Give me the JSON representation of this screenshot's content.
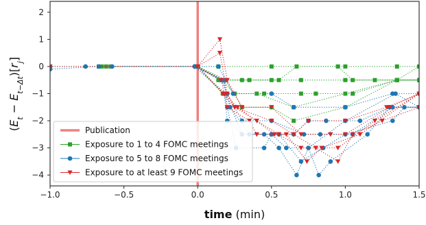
{
  "chart_data": {
    "type": "scatter",
    "title": "",
    "xlabel_bold": "time",
    "xlabel_rest": " (min)",
    "ylabel": "(E_t − E_{t−Δt})[r_j]",
    "xlim": [
      -1.0,
      1.5
    ],
    "ylim": [
      -4.4,
      2.4
    ],
    "xticks": [
      -1.0,
      -0.5,
      0.0,
      0.5,
      1.0,
      1.5
    ],
    "xtick_labels": [
      "−1.0",
      "−0.5",
      "0.0",
      "0.5",
      "1.0",
      "1.5"
    ],
    "yticks": [
      2,
      1,
      0,
      -1,
      -2,
      -3,
      -4
    ],
    "ytick_labels": [
      "2",
      "1",
      "0",
      "−1",
      "−2",
      "−3",
      "−4"
    ],
    "grid": false,
    "legend_position": "lower-left",
    "publication": {
      "name": "Publication",
      "x": 0.0,
      "color": "#f08080"
    },
    "series": [
      {
        "name": "Exposure to 1 to 4 FOMC meetings",
        "color": "#2ca02c",
        "marker": "square",
        "tracks": [
          [
            [
              -1.0,
              0
            ],
            [
              -0.65,
              0
            ],
            [
              0.0,
              0
            ],
            [
              0.14,
              0
            ],
            [
              0.5,
              0
            ],
            [
              1.0,
              0
            ],
            [
              1.35,
              0
            ],
            [
              1.5,
              0
            ]
          ],
          [
            [
              -0.62,
              0
            ],
            [
              0.0,
              0
            ],
            [
              0.14,
              -0.5
            ],
            [
              0.3,
              -0.5
            ],
            [
              0.5,
              -0.5
            ],
            [
              0.7,
              -0.5
            ],
            [
              1.0,
              -0.5
            ],
            [
              1.2,
              -0.5
            ],
            [
              1.35,
              -0.5
            ],
            [
              1.5,
              -0.5
            ]
          ],
          [
            [
              -0.67,
              0
            ],
            [
              0.0,
              0
            ],
            [
              0.16,
              -0.5
            ],
            [
              0.25,
              -1.0
            ],
            [
              0.45,
              -1.0
            ],
            [
              0.7,
              -1.0
            ],
            [
              0.8,
              -1.0
            ],
            [
              1.05,
              -1.0
            ],
            [
              1.35,
              -0.5
            ],
            [
              1.5,
              -0.5
            ]
          ],
          [
            [
              -0.59,
              0
            ],
            [
              0.0,
              0
            ],
            [
              0.17,
              -1.0
            ],
            [
              0.25,
              -1.0
            ],
            [
              0.4,
              -1.0
            ],
            [
              0.65,
              -1.5
            ],
            [
              1.0,
              -1.0
            ],
            [
              1.35,
              -0.5
            ],
            [
              1.5,
              -0.5
            ]
          ],
          [
            [
              0.0,
              0
            ],
            [
              0.19,
              -0.5
            ],
            [
              0.3,
              -1.5
            ],
            [
              0.5,
              -1.5
            ],
            [
              0.65,
              -2.0
            ],
            [
              1.0,
              -1.5
            ],
            [
              1.35,
              -0.5
            ],
            [
              1.5,
              0
            ]
          ],
          [
            [
              0.0,
              0
            ],
            [
              0.19,
              -0.5
            ],
            [
              0.35,
              -0.5
            ],
            [
              0.55,
              -0.5
            ],
            [
              0.67,
              0
            ],
            [
              0.95,
              0
            ],
            [
              1.05,
              -0.5
            ],
            [
              1.5,
              -0.5
            ]
          ]
        ]
      },
      {
        "name": "Exposure to 5 to 8 FOMC meetings",
        "color": "#1f77b4",
        "marker": "circle",
        "tracks": [
          [
            [
              -1.0,
              0
            ],
            [
              -0.76,
              0
            ],
            [
              -0.02,
              0
            ],
            [
              0.14,
              0
            ],
            [
              0.24,
              -1.0
            ],
            [
              0.5,
              -1.0
            ],
            [
              0.65,
              -1.5
            ],
            [
              1.0,
              -1.5
            ],
            [
              1.32,
              -1.0
            ],
            [
              1.5,
              -1.0
            ]
          ],
          [
            [
              -1.0,
              -0.1
            ],
            [
              -0.67,
              0
            ],
            [
              -0.02,
              0
            ],
            [
              0.16,
              -0.5
            ],
            [
              0.2,
              -1.0
            ],
            [
              0.3,
              -2.0
            ],
            [
              0.5,
              -2.0
            ],
            [
              0.72,
              -2.5
            ],
            [
              0.83,
              -2.5
            ],
            [
              1.05,
              -2.5
            ],
            [
              1.32,
              -1.5
            ],
            [
              1.5,
              -1.5
            ]
          ],
          [
            [
              -0.58,
              0
            ],
            [
              -0.02,
              0
            ],
            [
              0.17,
              -0.5
            ],
            [
              0.22,
              -1.5
            ],
            [
              0.35,
              -2.5
            ],
            [
              0.45,
              -2.5
            ],
            [
              0.55,
              -3.0
            ],
            [
              0.67,
              -4.0
            ],
            [
              0.75,
              -3.0
            ],
            [
              1.0,
              -2.0
            ],
            [
              1.34,
              -1.0
            ],
            [
              1.5,
              -1.5
            ]
          ],
          [
            [
              -0.02,
              0
            ],
            [
              0.18,
              -1.0
            ],
            [
              0.2,
              -2.0
            ],
            [
              0.3,
              -2.5
            ],
            [
              0.5,
              -2.5
            ],
            [
              0.6,
              -3.0
            ],
            [
              0.75,
              -3.0
            ],
            [
              0.82,
              -4.0
            ],
            [
              0.9,
              -3.5
            ],
            [
              1.15,
              -2.5
            ],
            [
              1.3,
              -1.5
            ],
            [
              1.5,
              -1.5
            ]
          ],
          [
            [
              -0.02,
              0
            ],
            [
              0.18,
              -0.5
            ],
            [
              0.2,
              -1.5
            ],
            [
              0.26,
              -3.0
            ],
            [
              0.45,
              -3.0
            ],
            [
              0.5,
              -2.5
            ],
            [
              0.65,
              -2.5
            ],
            [
              0.75,
              -2.0
            ],
            [
              0.87,
              -2.0
            ],
            [
              1.1,
              -2.0
            ],
            [
              1.3,
              -1.5
            ],
            [
              1.5,
              -1.5
            ]
          ],
          [
            [
              -0.02,
              0
            ],
            [
              0.19,
              -1.0
            ],
            [
              0.3,
              -2.5
            ],
            [
              0.55,
              -2.5
            ],
            [
              0.7,
              -3.5
            ],
            [
              0.85,
              -3.0
            ],
            [
              1.0,
              -2.5
            ],
            [
              1.32,
              -2.0
            ],
            [
              1.4,
              -1.5
            ],
            [
              1.5,
              -1.5
            ]
          ]
        ]
      },
      {
        "name": "Exposure to at least 9 FOMC meetings",
        "color": "#d62728",
        "marker": "triangle-down",
        "tracks": [
          [
            [
              -1.0,
              0
            ],
            [
              0.0,
              0
            ],
            [
              0.15,
              1.0
            ],
            [
              0.2,
              -0.5
            ],
            [
              0.3,
              -1.5
            ],
            [
              0.5,
              -1.5
            ],
            [
              0.7,
              -2.5
            ],
            [
              0.9,
              -2.5
            ],
            [
              1.0,
              -2.5
            ],
            [
              1.3,
              -1.5
            ],
            [
              1.5,
              -1.0
            ]
          ],
          [
            [
              0.0,
              0
            ],
            [
              0.15,
              0.5
            ],
            [
              0.2,
              -1.0
            ],
            [
              0.25,
              -1.5
            ],
            [
              0.4,
              -2.0
            ],
            [
              0.55,
              -2.5
            ],
            [
              0.65,
              -2.5
            ],
            [
              0.8,
              -3.0
            ],
            [
              0.95,
              -3.0
            ],
            [
              1.2,
              -2.0
            ],
            [
              1.5,
              -1.0
            ]
          ],
          [
            [
              0.0,
              0
            ],
            [
              0.16,
              -0.5
            ],
            [
              0.2,
              -1.5
            ],
            [
              0.35,
              -2.0
            ],
            [
              0.4,
              -2.5
            ],
            [
              0.55,
              -2.5
            ],
            [
              0.7,
              -3.0
            ],
            [
              0.8,
              -3.0
            ],
            [
              0.95,
              -3.5
            ],
            [
              1.05,
              -2.5
            ],
            [
              1.25,
              -2.0
            ],
            [
              1.5,
              -1.5
            ]
          ],
          [
            [
              0.0,
              0
            ],
            [
              0.17,
              -1.0
            ],
            [
              0.25,
              -1.5
            ],
            [
              0.5,
              -2.0
            ],
            [
              0.65,
              -2.5
            ],
            [
              0.75,
              -2.0
            ],
            [
              1.0,
              -2.0
            ],
            [
              1.28,
              -1.5
            ],
            [
              1.5,
              -1.0
            ]
          ],
          [
            [
              0.0,
              0
            ],
            [
              0.18,
              -1.0
            ],
            [
              0.27,
              -1.5
            ],
            [
              0.52,
              -2.5
            ],
            [
              0.6,
              -2.5
            ],
            [
              0.74,
              -3.5
            ],
            [
              0.84,
              -3.0
            ],
            [
              1.1,
              -2.5
            ],
            [
              1.5,
              -1.0
            ]
          ]
        ]
      }
    ]
  }
}
